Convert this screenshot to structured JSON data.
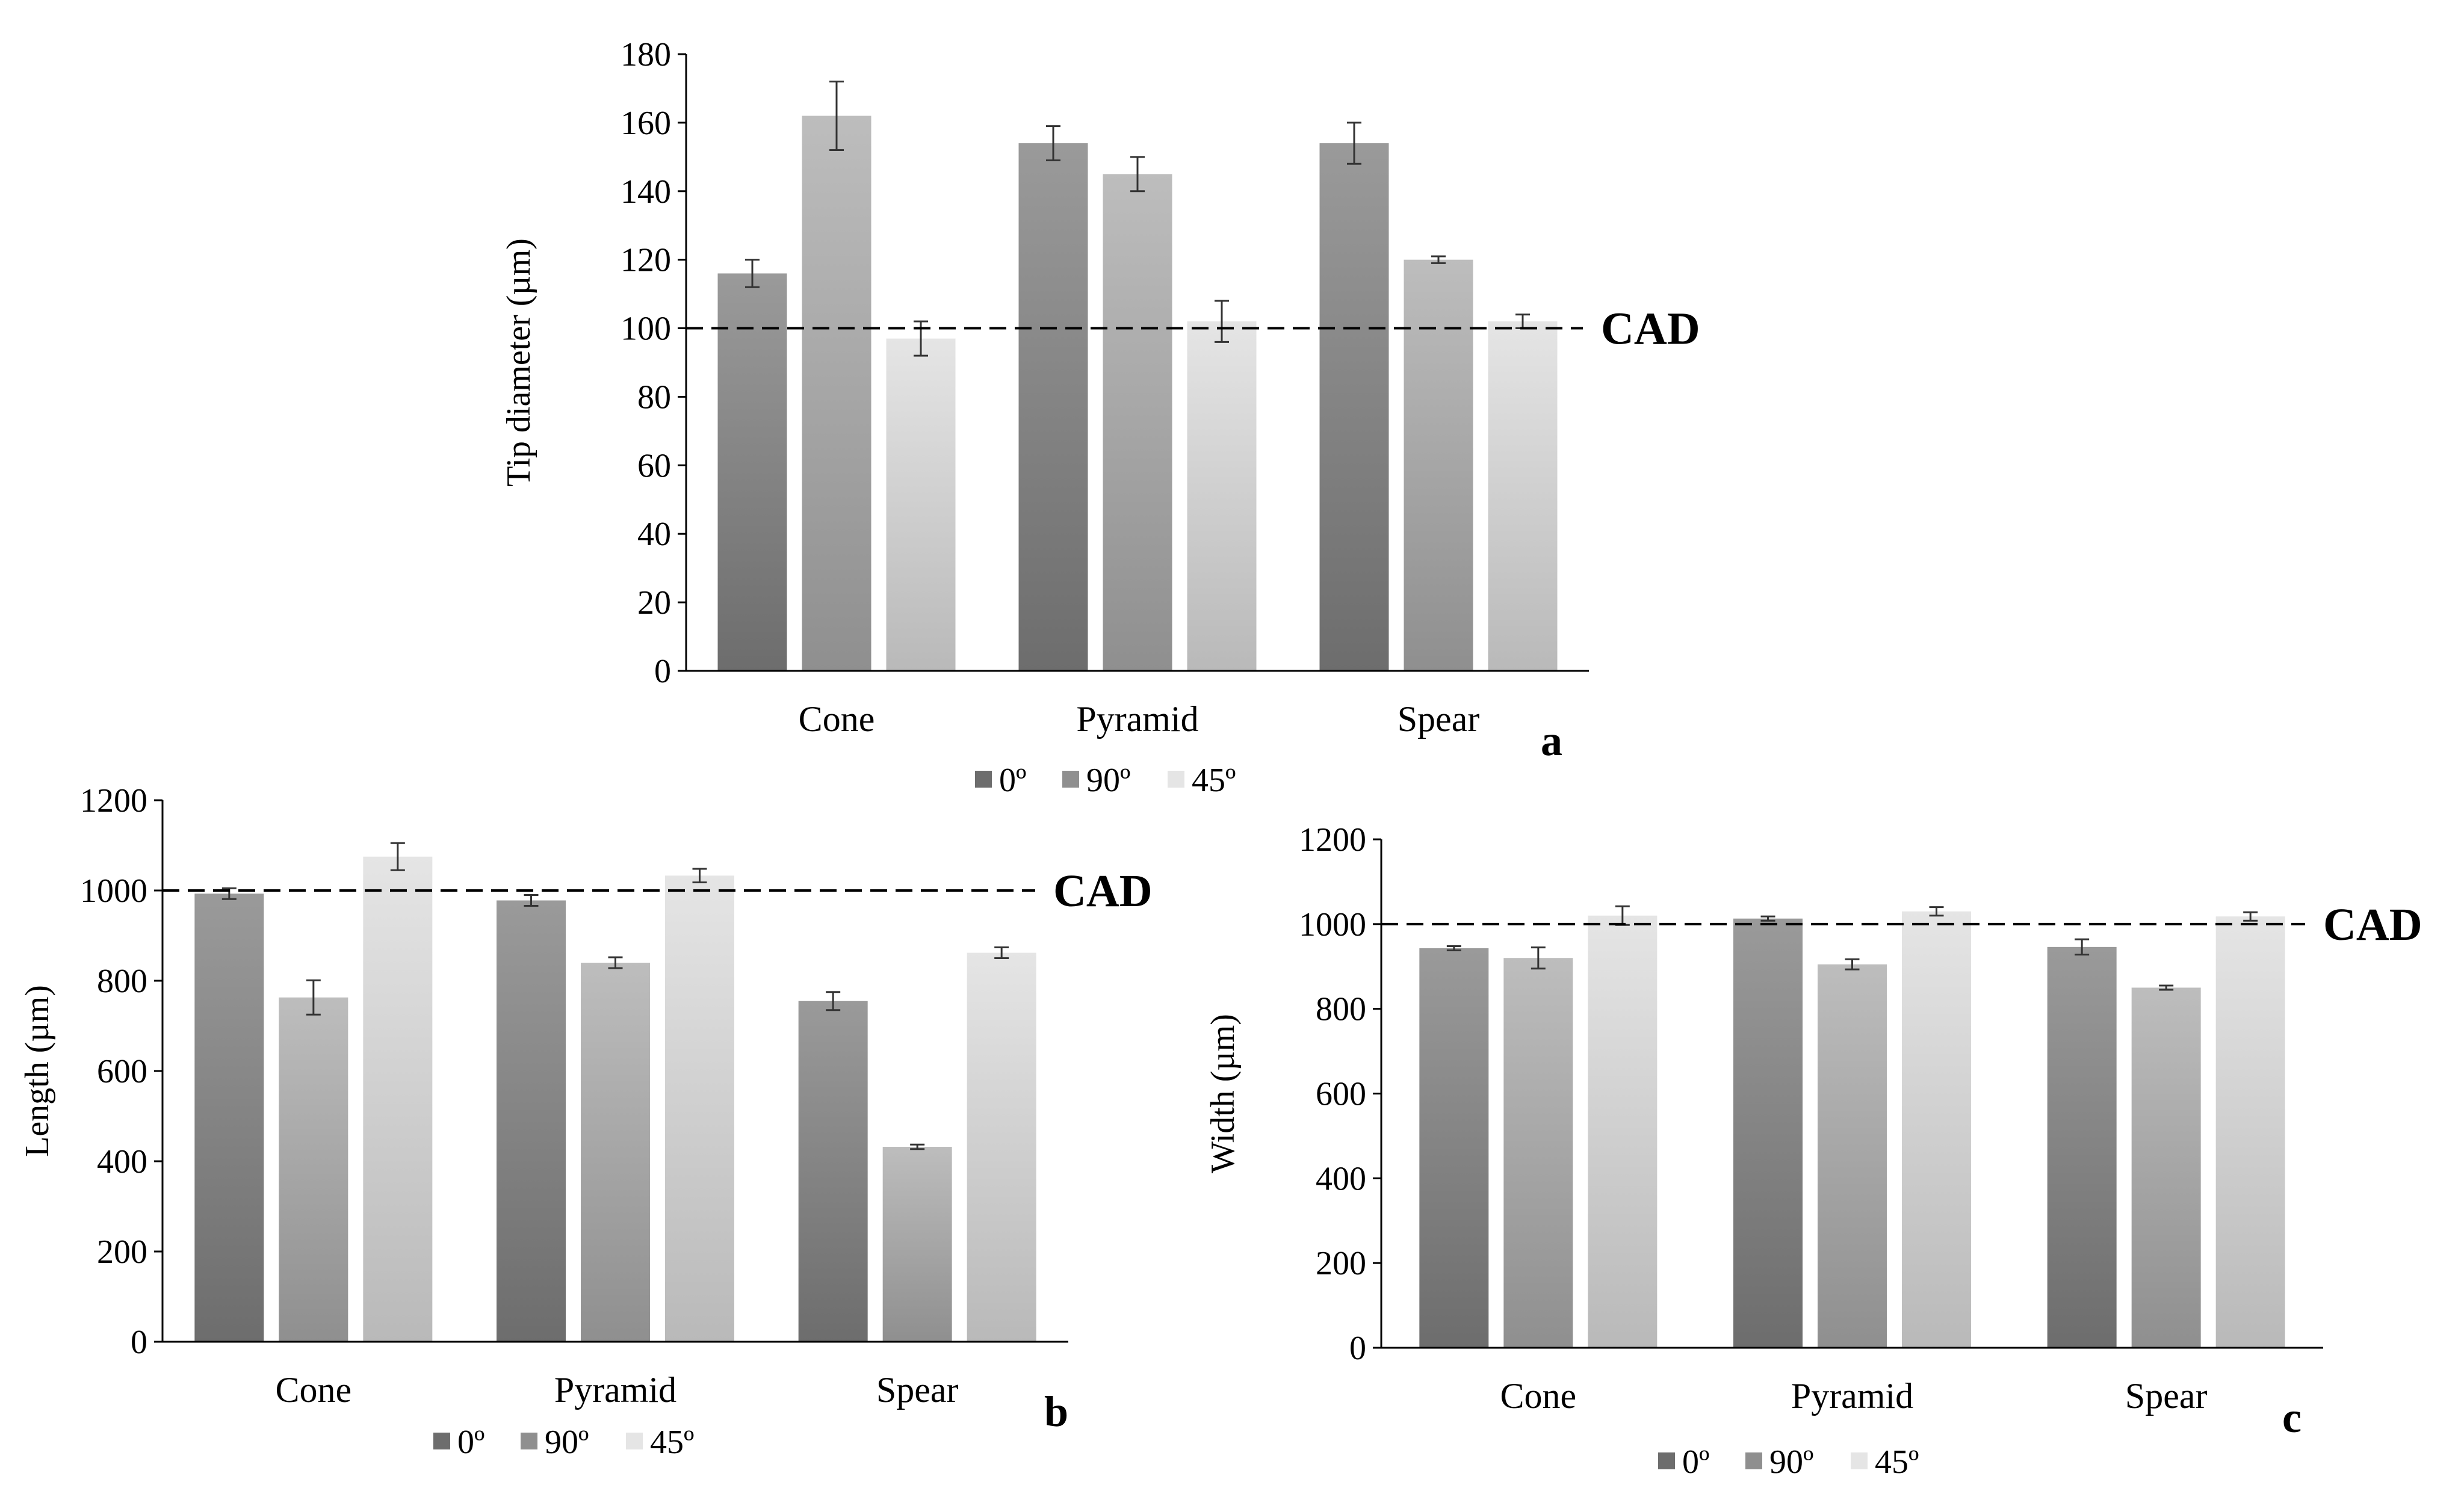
{
  "colors": {
    "s0_top": "#9a9a9a",
    "s0_bottom": "#6d6d6d",
    "s90_top": "#bdbdbd",
    "s90_bottom": "#8f8f8f",
    "s45_top": "#e5e5e5",
    "s45_bottom": "#b9b9b9",
    "axis": "#000000",
    "errorbar": "#333333",
    "cad_line": "#000000"
  },
  "chart_data": [
    {
      "id": "a",
      "type": "bar",
      "panel_label": "a",
      "ylabel": "Tip diameter (µm)",
      "categories": [
        "Cone",
        "Pyramid",
        "Spear"
      ],
      "ylim": [
        0,
        180
      ],
      "yticks": [
        0,
        20,
        40,
        60,
        80,
        100,
        120,
        140,
        160,
        180
      ],
      "series": [
        {
          "name": "0º",
          "values": [
            116,
            154,
            154
          ],
          "errors": [
            4,
            5,
            6
          ]
        },
        {
          "name": "90º",
          "values": [
            162,
            145,
            120
          ],
          "errors": [
            10,
            5,
            1
          ]
        },
        {
          "name": "45º",
          "values": [
            97,
            102,
            102
          ],
          "errors": [
            5,
            6,
            2
          ]
        }
      ],
      "reference": {
        "value": 100,
        "label": "CAD"
      },
      "legend": [
        "0º",
        "90º",
        "45º"
      ],
      "legend_position": "bottom-center"
    },
    {
      "id": "b",
      "type": "bar",
      "panel_label": "b",
      "ylabel": "Length (µm)",
      "categories": [
        "Cone",
        "Pyramid",
        "Spear"
      ],
      "ylim": [
        0,
        1200
      ],
      "yticks": [
        0,
        200,
        400,
        600,
        800,
        1000,
        1200
      ],
      "series": [
        {
          "name": "0º",
          "values": [
            993,
            978,
            755
          ],
          "errors": [
            12,
            12,
            20
          ]
        },
        {
          "name": "90º",
          "values": [
            763,
            840,
            432
          ],
          "errors": [
            38,
            12,
            5
          ]
        },
        {
          "name": "45º",
          "values": [
            1075,
            1033,
            862
          ],
          "errors": [
            30,
            15,
            12
          ]
        }
      ],
      "reference": {
        "value": 1000,
        "label": "CAD"
      },
      "legend": [
        "0º",
        "90º",
        "45º"
      ],
      "legend_position": "bottom-center"
    },
    {
      "id": "c",
      "type": "bar",
      "panel_label": "c",
      "ylabel": "Width (µm)",
      "categories": [
        "Cone",
        "Pyramid",
        "Spear"
      ],
      "ylim": [
        0,
        1200
      ],
      "yticks": [
        0,
        200,
        400,
        600,
        800,
        1000,
        1200
      ],
      "series": [
        {
          "name": "0º",
          "values": [
            943,
            1013,
            946
          ],
          "errors": [
            5,
            5,
            18
          ]
        },
        {
          "name": "90º",
          "values": [
            920,
            905,
            850
          ],
          "errors": [
            25,
            12,
            5
          ]
        },
        {
          "name": "45º",
          "values": [
            1020,
            1030,
            1018
          ],
          "errors": [
            22,
            10,
            10
          ]
        }
      ],
      "reference": {
        "value": 1000,
        "label": "CAD"
      },
      "legend": [
        "0º",
        "90º",
        "45º"
      ],
      "legend_position": "bottom-center"
    }
  ]
}
